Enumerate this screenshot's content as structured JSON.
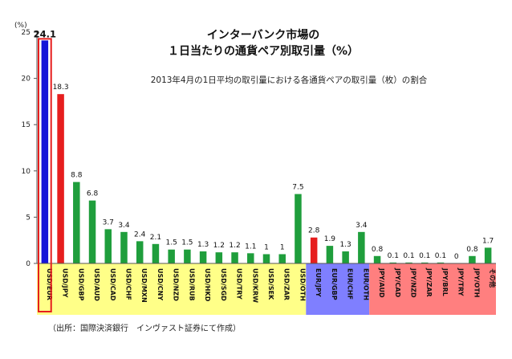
{
  "chart_data": {
    "type": "bar",
    "title_lines": [
      "インターバンク市場の",
      "１日当たりの通貨ペア別取引量（%）"
    ],
    "subtitle": "2013年4月の1日平均の取引量における各通貨ペアの取引量（枚）の割合",
    "y_unit": "(%)",
    "ylim": [
      0,
      25
    ],
    "yticks": [
      "0",
      "5",
      "10",
      "15",
      "20",
      "25"
    ],
    "source": "（出所：国際決済銀行　インヴァスト証券にて作成）",
    "categories": [
      "USD/EUR",
      "USD/JPY",
      "USD/GBP",
      "USD/AUD",
      "USD/CAD",
      "USD/CHF",
      "USD/MXN",
      "USD/CNY",
      "USD/NZD",
      "USD/RUB",
      "USD/HKD",
      "USD/SGD",
      "USD/TRY",
      "USD/KRW",
      "USD/SEK",
      "USD/ZAR",
      "USD/OTH",
      "EUR/JPY",
      "EUR/GBP",
      "EUR/CHF",
      "EUR/OTH",
      "JPY/AUD",
      "JPY/CAD",
      "JPY/NZD",
      "JPY/ZAR",
      "JPY/BRL",
      "JPY/TRY",
      "JPY/OTH",
      "その他"
    ],
    "values": [
      24.1,
      18.3,
      8.8,
      6.8,
      3.7,
      3.4,
      2.4,
      2.1,
      1.5,
      1.5,
      1.3,
      1.2,
      1.2,
      1.1,
      1,
      1,
      7.5,
      2.8,
      1.9,
      1.3,
      3.4,
      0.8,
      0.1,
      0.1,
      0.1,
      0.1,
      0,
      0.8,
      1.7
    ],
    "value_labels": [
      "24.1",
      "18.3",
      "8.8",
      "6.8",
      "3.7",
      "3.4",
      "2.4",
      "2.1",
      "1.5",
      "1.5",
      "1.3",
      "1.2",
      "1.2",
      "1.1",
      "1",
      "1",
      "7.5",
      "2.8",
      "1.9",
      "1.3",
      "3.4",
      "0.8",
      "0.1",
      "0.1",
      "0.1",
      "0.1",
      "0",
      "0.8",
      "1.7"
    ],
    "bar_colors": [
      "#1414d8",
      "#e61e1e",
      "#1f9e3c",
      "#1f9e3c",
      "#1f9e3c",
      "#1f9e3c",
      "#1f9e3c",
      "#1f9e3c",
      "#1f9e3c",
      "#1f9e3c",
      "#1f9e3c",
      "#1f9e3c",
      "#1f9e3c",
      "#1f9e3c",
      "#1f9e3c",
      "#1f9e3c",
      "#1f9e3c",
      "#e61e1e",
      "#1f9e3c",
      "#1f9e3c",
      "#1f9e3c",
      "#1f9e3c",
      "#1f9e3c",
      "#1f9e3c",
      "#1f9e3c",
      "#1f9e3c",
      "#1f9e3c",
      "#1f9e3c",
      "#1f9e3c"
    ],
    "groups": [
      {
        "from": 0,
        "to": 16,
        "color": "#ffff88"
      },
      {
        "from": 17,
        "to": 20,
        "color": "#7f7fff"
      },
      {
        "from": 21,
        "to": 28,
        "color": "#ff7f7f"
      }
    ],
    "highlight_index": 0,
    "highlight_color": "#e61e1e",
    "grid": false,
    "legend": "none"
  }
}
